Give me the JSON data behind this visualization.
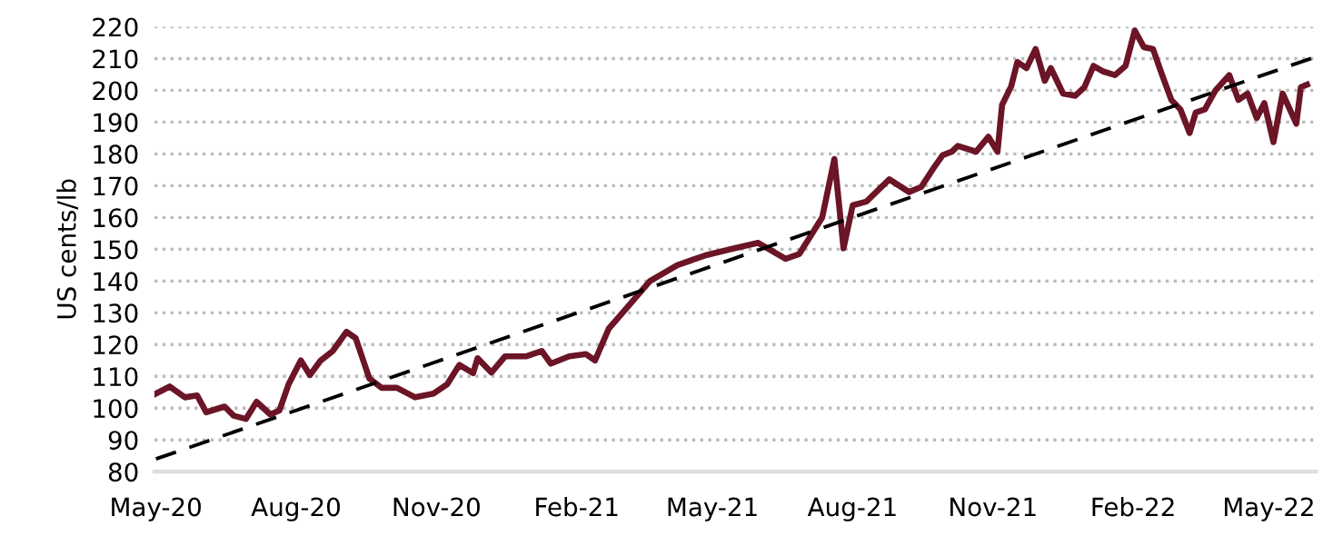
{
  "chart_data": {
    "type": "line",
    "ylabel": "US cents/lb",
    "xlim": [
      "2020-04-30",
      "2022-06-01"
    ],
    "ylim": [
      80,
      220
    ],
    "yticks": [
      80,
      90,
      100,
      110,
      120,
      130,
      140,
      150,
      160,
      170,
      180,
      190,
      200,
      210,
      220
    ],
    "xticks": [
      {
        "value": "2020-05-01",
        "label": "May-20"
      },
      {
        "value": "2020-08-01",
        "label": "Aug-20"
      },
      {
        "value": "2020-11-01",
        "label": "Nov-20"
      },
      {
        "value": "2021-02-01",
        "label": "Feb-21"
      },
      {
        "value": "2021-05-01",
        "label": "May-21"
      },
      {
        "value": "2021-08-01",
        "label": "Aug-21"
      },
      {
        "value": "2021-11-01",
        "label": "Nov-21"
      },
      {
        "value": "2022-02-01",
        "label": "Feb-22"
      },
      {
        "value": "2022-05-01",
        "label": "May-22"
      }
    ],
    "grid": "y",
    "legend": false,
    "marker": "none",
    "series": [
      {
        "color": "#6b1526",
        "line_style": "solid",
        "x": [
          "2020-05-01",
          "2020-05-10",
          "2020-05-20",
          "2020-05-28",
          "2020-06-03",
          "2020-06-15",
          "2020-06-21",
          "2020-06-29",
          "2020-07-06",
          "2020-07-15",
          "2020-07-21",
          "2020-07-27",
          "2020-08-04",
          "2020-08-10",
          "2020-08-17",
          "2020-08-25",
          "2020-09-03",
          "2020-09-09",
          "2020-09-18",
          "2020-09-26",
          "2020-10-06",
          "2020-10-18",
          "2020-10-30",
          "2020-11-08",
          "2020-11-16",
          "2020-11-25",
          "2020-11-28",
          "2020-12-07",
          "2020-12-16",
          "2020-12-30",
          "2021-01-09",
          "2021-01-15",
          "2021-01-27",
          "2021-02-07",
          "2021-02-13",
          "2021-02-22",
          "2021-03-03",
          "2021-03-21",
          "2021-04-08",
          "2021-04-26",
          "2021-05-13",
          "2021-05-31",
          "2021-06-18",
          "2021-06-27",
          "2021-07-12",
          "2021-07-20",
          "2021-07-26",
          "2021-08-01",
          "2021-08-10",
          "2021-08-25",
          "2021-09-07",
          "2021-09-15",
          "2021-09-23",
          "2021-09-29",
          "2021-10-05",
          "2021-10-09",
          "2021-10-21",
          "2021-10-29",
          "2021-11-04",
          "2021-11-07",
          "2021-11-13",
          "2021-11-17",
          "2021-11-23",
          "2021-11-29",
          "2021-12-05",
          "2021-12-09",
          "2021-12-17",
          "2021-12-25",
          "2021-12-31",
          "2022-01-06",
          "2022-01-12",
          "2022-01-20",
          "2022-01-27",
          "2022-02-02",
          "2022-02-08",
          "2022-02-14",
          "2022-02-20",
          "2022-02-26",
          "2022-03-04",
          "2022-03-10",
          "2022-03-14",
          "2022-03-20",
          "2022-03-27",
          "2022-04-05",
          "2022-04-11",
          "2022-04-17",
          "2022-04-23",
          "2022-04-28",
          "2022-05-04",
          "2022-05-10",
          "2022-05-19",
          "2022-05-22",
          "2022-05-26"
        ],
        "values": [
          104.6,
          106.8,
          103.4,
          104,
          98.7,
          100.5,
          97.6,
          96.6,
          102,
          98,
          99.3,
          107.5,
          115,
          110.4,
          115,
          118,
          124,
          122,
          109.3,
          106.4,
          106.4,
          103.4,
          104.6,
          107.5,
          113.6,
          111,
          115.7,
          111.2,
          116.3,
          116.3,
          118,
          114,
          116.3,
          117,
          115,
          125,
          130,
          140,
          145,
          148,
          150,
          152,
          147,
          148.5,
          160,
          178.4,
          150.3,
          163.8,
          165,
          172,
          168,
          169.6,
          175.5,
          179.6,
          180.7,
          182.5,
          180.7,
          185.4,
          180.7,
          195.4,
          201.3,
          208.9,
          207,
          213,
          203,
          207,
          199,
          198.3,
          201,
          207.7,
          206,
          204.8,
          207.7,
          218.8,
          213.6,
          213,
          204.8,
          197,
          194,
          186.6,
          193,
          194,
          200,
          204.8,
          197,
          199,
          191.3,
          196,
          183.7,
          199,
          189.5,
          201,
          201.8
        ]
      },
      {
        "color": "#000000",
        "line_style": "dashed",
        "x": [
          "2020-05-01",
          "2022-06-01"
        ],
        "values": [
          84,
          210.6
        ]
      }
    ]
  }
}
